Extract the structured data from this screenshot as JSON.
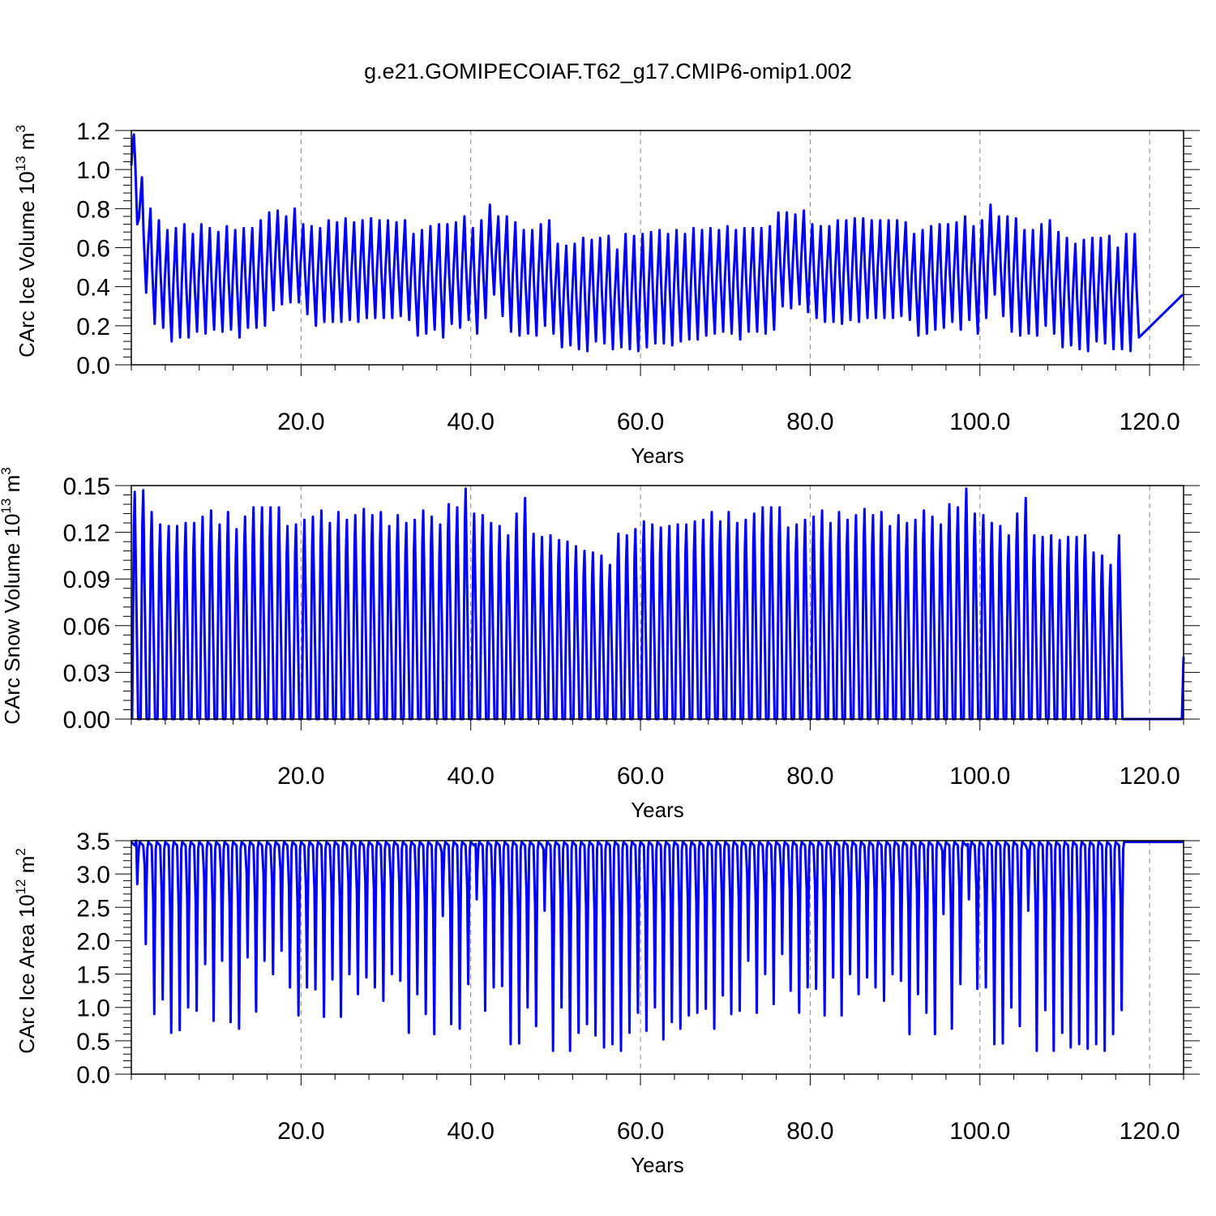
{
  "title": "g.e21.GOMIPECOIAF.T62_g17.CMIP6-omip1.002",
  "colors": {
    "series": "#0000ff",
    "axis": "#000000",
    "grid": "#888888"
  },
  "chart_data": [
    {
      "type": "line",
      "ylabel_main": "CArc Ice Volume 10",
      "ylabel_exp": "13",
      "ylabel_unit": " m",
      "ylabel_unit_exp": "3",
      "xlabel": "Years",
      "xlim": [
        0,
        124
      ],
      "ylim": [
        0,
        1.2
      ],
      "xticks": [
        20,
        40,
        60,
        80,
        100,
        120
      ],
      "xtick_labels": [
        "20.0",
        "40.0",
        "60.0",
        "80.0",
        "100.0",
        "120.0"
      ],
      "yticks": [
        0,
        0.2,
        0.4,
        0.6,
        0.8,
        1.0,
        1.2
      ],
      "ytick_labels": [
        "0.0",
        "0.2",
        "0.4",
        "0.6",
        "0.8",
        "1.0",
        "1.2"
      ],
      "grid": "vertical dashed at major x ticks",
      "series": [
        {
          "phase": 0.25,
          "first_year": {
            "max": 1.18,
            "min": 0.7
          },
          "max": [
            0.96,
            0.8,
            0.74,
            0.69,
            0.7,
            0.72,
            0.67,
            0.72,
            0.7,
            0.68,
            0.71,
            0.69,
            0.7,
            0.7,
            0.74,
            0.78,
            0.79,
            0.76,
            0.8,
            0.72,
            0.71,
            0.7,
            0.74,
            0.73,
            0.75,
            0.73,
            0.74,
            0.75,
            0.74,
            0.74,
            0.73,
            0.74,
            0.67,
            0.69,
            0.71,
            0.72,
            0.72,
            0.73,
            0.76,
            0.7,
            0.74,
            0.82,
            0.76,
            0.76,
            0.73,
            0.69,
            0.69,
            0.72,
            0.74,
            0.62,
            0.61,
            0.62,
            0.65,
            0.64,
            0.65,
            0.66,
            0.59,
            0.67,
            0.66,
            0.67,
            0.68,
            0.69,
            0.67,
            0.69,
            0.67,
            0.7,
            0.69,
            0.7,
            0.69,
            0.71,
            0.69,
            0.7,
            0.7,
            0.7,
            0.71,
            0.78,
            0.78,
            0.77,
            0.79,
            0.72,
            0.71,
            0.71,
            0.74,
            0.74,
            0.75,
            0.75,
            0.74,
            0.74,
            0.74,
            0.74,
            0.73,
            0.67,
            0.69,
            0.71,
            0.72,
            0.72,
            0.73,
            0.76,
            0.71,
            0.74,
            0.82,
            0.76,
            0.76,
            0.75,
            0.69,
            0.69,
            0.72,
            0.74,
            0.68,
            0.65,
            0.62,
            0.64,
            0.65,
            0.65,
            0.66,
            0.6,
            0.67,
            0.67
          ],
          "min": [
            0.37,
            0.21,
            0.19,
            0.12,
            0.14,
            0.14,
            0.17,
            0.16,
            0.18,
            0.17,
            0.18,
            0.14,
            0.19,
            0.19,
            0.2,
            0.28,
            0.31,
            0.32,
            0.32,
            0.26,
            0.2,
            0.22,
            0.22,
            0.22,
            0.23,
            0.22,
            0.24,
            0.24,
            0.24,
            0.24,
            0.25,
            0.23,
            0.15,
            0.16,
            0.18,
            0.14,
            0.21,
            0.19,
            0.23,
            0.16,
            0.24,
            0.36,
            0.25,
            0.17,
            0.15,
            0.16,
            0.15,
            0.2,
            0.16,
            0.09,
            0.1,
            0.08,
            0.07,
            0.12,
            0.11,
            0.08,
            0.09,
            0.08,
            0.07,
            0.09,
            0.11,
            0.11,
            0.1,
            0.12,
            0.13,
            0.13,
            0.15,
            0.16,
            0.17,
            0.16,
            0.13,
            0.17,
            0.17,
            0.16,
            0.18,
            0.3,
            0.29,
            0.31,
            0.27,
            0.24,
            0.22,
            0.22,
            0.21,
            0.23,
            0.22,
            0.24,
            0.24,
            0.24,
            0.24,
            0.25,
            0.23,
            0.15,
            0.16,
            0.18,
            0.19,
            0.22,
            0.18,
            0.23,
            0.16,
            0.24,
            0.36,
            0.25,
            0.17,
            0.15,
            0.16,
            0.15,
            0.2,
            0.16,
            0.09,
            0.1,
            0.08,
            0.07,
            0.12,
            0.11,
            0.08,
            0.08,
            0.07,
            0.14
          ]
        }
      ]
    },
    {
      "type": "line",
      "ylabel_main": "CArc Snow Volume 10",
      "ylabel_exp": "13",
      "ylabel_unit": " m",
      "ylabel_unit_exp": "3",
      "xlabel": "Years",
      "xlim": [
        0,
        124
      ],
      "ylim": [
        0,
        0.15
      ],
      "xticks": [
        20,
        40,
        60,
        80,
        100,
        120
      ],
      "xtick_labels": [
        "20.0",
        "40.0",
        "60.0",
        "80.0",
        "100.0",
        "120.0"
      ],
      "yticks": [
        0,
        0.03,
        0.06,
        0.09,
        0.12,
        0.15
      ],
      "ytick_labels": [
        "0.00",
        "0.03",
        "0.06",
        "0.09",
        "0.12",
        "0.15"
      ],
      "grid": "vertical dashed at major x ticks",
      "series": [
        {
          "phase": 0.35,
          "max": [
            0.146,
            0.147,
            0.133,
            0.125,
            0.124,
            0.124,
            0.126,
            0.126,
            0.13,
            0.134,
            0.125,
            0.133,
            0.122,
            0.13,
            0.136,
            0.136,
            0.136,
            0.136,
            0.124,
            0.125,
            0.128,
            0.13,
            0.134,
            0.126,
            0.133,
            0.128,
            0.131,
            0.135,
            0.131,
            0.133,
            0.124,
            0.131,
            0.126,
            0.128,
            0.134,
            0.13,
            0.125,
            0.138,
            0.136,
            0.148,
            0.132,
            0.131,
            0.126,
            0.124,
            0.118,
            0.132,
            0.142,
            0.119,
            0.117,
            0.118,
            0.115,
            0.114,
            0.111,
            0.108,
            0.107,
            0.105,
            0.099,
            0.119,
            0.118,
            0.122,
            0.127,
            0.125,
            0.123,
            0.124,
            0.125,
            0.125,
            0.127,
            0.128,
            0.133,
            0.127,
            0.133,
            0.126,
            0.128,
            0.132,
            0.136,
            0.136,
            0.136,
            0.123,
            0.125,
            0.128,
            0.13,
            0.134,
            0.126,
            0.133,
            0.128,
            0.131,
            0.135,
            0.131,
            0.133,
            0.124,
            0.131,
            0.126,
            0.128,
            0.134,
            0.13,
            0.125,
            0.138,
            0.136,
            0.148,
            0.132,
            0.131,
            0.126,
            0.124,
            0.118,
            0.132,
            0.142,
            0.118,
            0.117,
            0.118,
            0.115,
            0.117,
            0.117,
            0.118,
            0.107,
            0.105,
            0.099,
            0.118
          ]
        }
      ]
    },
    {
      "type": "line",
      "ylabel_main": "CArc Ice Area 10",
      "ylabel_exp": "12",
      "ylabel_unit": " m",
      "ylabel_unit_exp": "2",
      "xlabel": "Years",
      "xlim": [
        0,
        124
      ],
      "ylim": [
        0,
        3.5
      ],
      "xticks": [
        20,
        40,
        60,
        80,
        100,
        120
      ],
      "xtick_labels": [
        "20.0",
        "40.0",
        "60.0",
        "80.0",
        "100.0",
        "120.0"
      ],
      "yticks": [
        0,
        0.5,
        1.0,
        1.5,
        2.0,
        2.5,
        3.0,
        3.5
      ],
      "ytick_labels": [
        "0.0",
        "0.5",
        "1.0",
        "1.5",
        "2.0",
        "2.5",
        "3.0",
        "3.5"
      ],
      "grid": "vertical dashed at major x ticks",
      "series": [
        {
          "plateau": 3.48,
          "min": [
            2.85,
            1.95,
            0.9,
            1.12,
            0.62,
            0.66,
            1.0,
            0.95,
            1.65,
            0.8,
            1.7,
            0.78,
            0.68,
            1.75,
            0.94,
            1.7,
            1.5,
            1.85,
            1.3,
            0.88,
            1.3,
            1.27,
            0.86,
            1.42,
            0.86,
            1.5,
            1.2,
            1.45,
            1.3,
            1.1,
            1.5,
            1.4,
            0.62,
            1.2,
            0.9,
            0.6,
            2.37,
            0.75,
            0.68,
            1.35,
            2.62,
            0.95,
            1.3,
            1.32,
            0.45,
            0.46,
            1.0,
            0.72,
            2.45,
            0.35,
            1.0,
            0.35,
            0.62,
            0.75,
            0.58,
            0.4,
            0.45,
            0.35,
            0.62,
            0.92,
            0.65,
            1.0,
            0.52,
            0.78,
            0.68,
            0.88,
            0.92,
            0.98,
            0.68,
            1.18,
            0.9,
            0.95,
            1.7,
            0.92,
            1.5,
            1.05,
            1.8,
            1.25,
            0.92,
            1.3,
            1.28,
            0.88,
            1.45,
            0.88,
            1.5,
            1.2,
            1.45,
            1.3,
            1.1,
            1.5,
            1.4,
            0.6,
            1.2,
            0.92,
            0.6,
            2.4,
            0.68,
            1.35,
            2.62,
            1.28,
            1.3,
            0.45,
            0.46,
            1.0,
            0.72,
            2.45,
            0.35,
            0.96,
            0.35,
            0.62,
            0.4,
            0.45,
            0.38,
            0.45,
            0.35,
            0.6,
            0.96
          ]
        }
      ]
    }
  ]
}
